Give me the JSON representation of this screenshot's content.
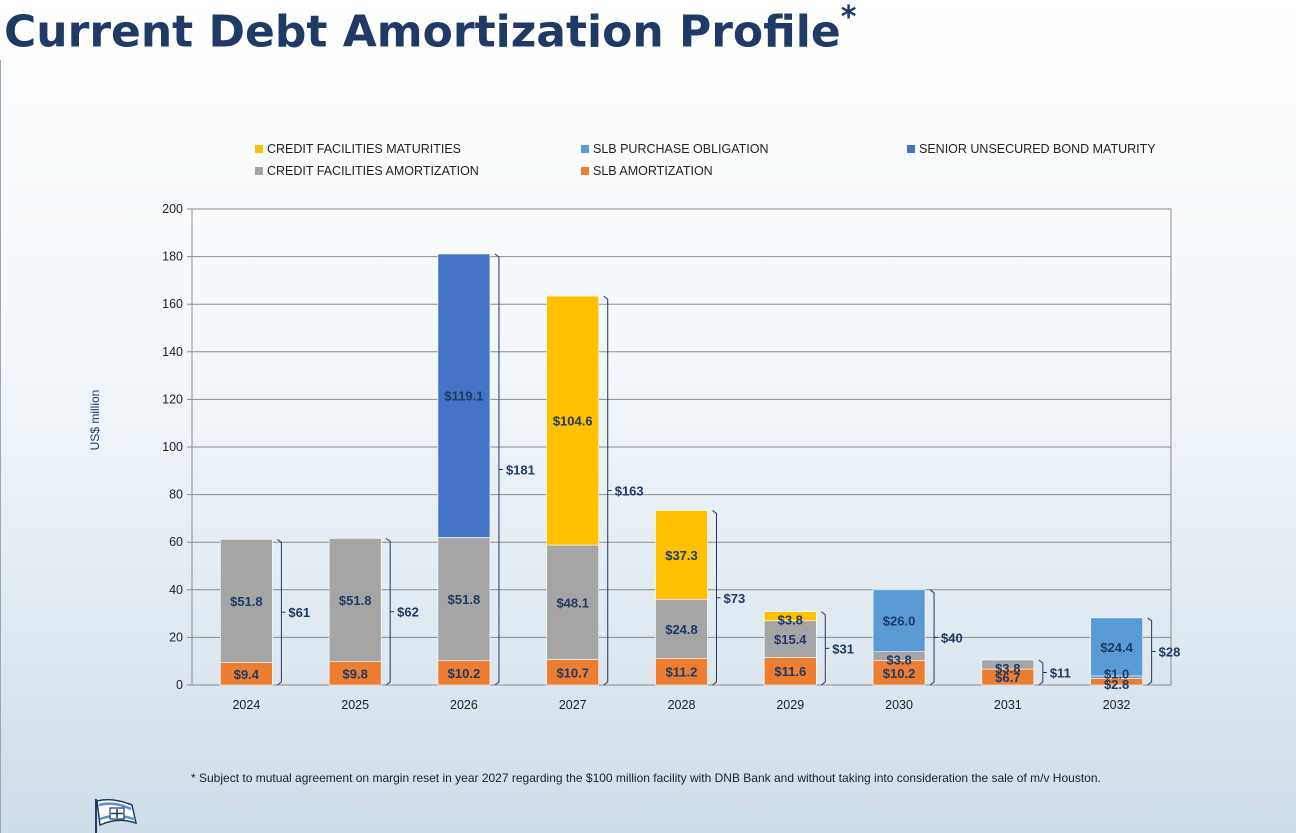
{
  "page": {
    "title": "Current Debt Amortization Profile",
    "title_mark": "*",
    "footnote": "*  Subject to mutual agreement on margin reset in year 2027 regarding the $100 million facility with DNB Bank and without taking into consideration the sale of m/v Houston."
  },
  "colors": {
    "title": "#1f3a64",
    "credit_maturities": "#FFC000",
    "credit_amortization": "#A5A5A5",
    "slb_purchase": "#5B9BD5",
    "slb_amortization": "#ED7D31",
    "bond_maturity": "#4472C4",
    "label_text": "#1f3a64"
  },
  "chart_data": {
    "type": "bar",
    "stacked": true,
    "ylabel": "US$ million",
    "ylim": [
      0,
      200
    ],
    "yticks": [
      0,
      20,
      40,
      60,
      80,
      100,
      120,
      140,
      160,
      180,
      200
    ],
    "grid": true,
    "legend_position": "top",
    "categories": [
      "2024",
      "2025",
      "2026",
      "2027",
      "2028",
      "2029",
      "2030",
      "2031",
      "2032"
    ],
    "series": [
      {
        "name": "SLB AMORTIZATION",
        "key": "slb_amortization",
        "values": [
          9.4,
          9.8,
          10.2,
          10.7,
          11.2,
          11.6,
          10.2,
          6.7,
          2.8
        ]
      },
      {
        "name": "SLB PURCHASE OBLIGATION",
        "key": "slb_purchase",
        "values": [
          0,
          0,
          0,
          0,
          0,
          0,
          0,
          0,
          1.0
        ]
      },
      {
        "name": "CREDIT FACILITIES AMORTIZATION",
        "key": "credit_amortization",
        "values": [
          51.8,
          51.8,
          51.8,
          48.1,
          24.8,
          15.4,
          3.8,
          3.8,
          0
        ]
      },
      {
        "name": "CREDIT FACILITIES MATURITIES",
        "key": "credit_maturities",
        "values": [
          0,
          0,
          0,
          104.6,
          37.3,
          3.8,
          0,
          0,
          0
        ]
      },
      {
        "name": "SLB PURCHASE OBLIGATION",
        "key": "slb_purchase",
        "values": [
          0,
          0,
          0,
          0,
          0,
          0,
          26.0,
          0,
          24.4
        ]
      },
      {
        "name": "SENIOR UNSECURED BOND MATURITY",
        "key": "bond_maturity",
        "values": [
          0,
          0,
          119.1,
          0,
          0,
          0,
          0,
          0,
          0
        ]
      }
    ],
    "segment_labels": [
      [
        "$9.4",
        "",
        "$51.8",
        "",
        "",
        ""
      ],
      [
        "$9.8",
        "",
        "$51.8",
        "",
        "",
        ""
      ],
      [
        "$10.2",
        "",
        "$51.8",
        "",
        "",
        "$119.1"
      ],
      [
        "$10.7",
        "",
        "$48.1",
        "$104.6",
        "",
        ""
      ],
      [
        "$11.2",
        "",
        "$24.8",
        "$37.3",
        "",
        ""
      ],
      [
        "$11.6",
        "",
        "$15.4",
        "$3.8",
        "",
        ""
      ],
      [
        "$10.2",
        "",
        "$3.8",
        "",
        "$26.0",
        ""
      ],
      [
        "$6.7",
        "",
        "$3.8",
        "",
        "",
        ""
      ],
      [
        "$2.8",
        "$1.0",
        "",
        "",
        "$24.4",
        ""
      ]
    ],
    "totals": [
      "$61",
      "$62",
      "$181",
      "$163",
      "$73",
      "$31",
      "$40",
      "$11",
      "$28"
    ],
    "legend": [
      {
        "label": "CREDIT FACILITIES MATURITIES",
        "key": "credit_maturities"
      },
      {
        "label": "SLB PURCHASE OBLIGATION",
        "key": "slb_purchase"
      },
      {
        "label": "SENIOR UNSECURED BOND MATURITY",
        "key": "bond_maturity"
      },
      {
        "label": "CREDIT FACILITIES AMORTIZATION",
        "key": "credit_amortization"
      },
      {
        "label": "SLB AMORTIZATION",
        "key": "slb_amortization"
      }
    ]
  }
}
